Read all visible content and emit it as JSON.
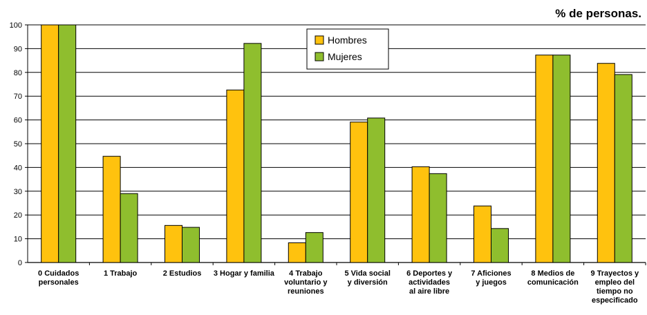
{
  "chart_data": {
    "type": "bar",
    "title": "% de personas.",
    "ylim": [
      0,
      100
    ],
    "yticks": [
      0,
      10,
      20,
      30,
      40,
      50,
      60,
      70,
      80,
      90,
      100
    ],
    "grid": true,
    "legend_position": "top-center",
    "categories": [
      [
        "0 Cuidados",
        "personales"
      ],
      [
        "1 Trabajo"
      ],
      [
        "2 Estudios"
      ],
      [
        "3 Hogar y familia"
      ],
      [
        "4 Trabajo",
        "voluntario y",
        "reuniones"
      ],
      [
        "5 Vida social",
        "y diversión"
      ],
      [
        "6 Deportes y",
        "actividades",
        "al aire libre"
      ],
      [
        "7 Aficiones",
        "y juegos"
      ],
      [
        "8 Medios de",
        "comunicación"
      ],
      [
        "9 Trayectos y",
        "empleo del",
        "tiempo no",
        "especificado"
      ]
    ],
    "series": [
      {
        "name": "Hombres",
        "color": "#ffc20e",
        "values": [
          100,
          44.7,
          15.6,
          72.6,
          8.3,
          59.1,
          40.3,
          23.8,
          87.3,
          83.8
        ]
      },
      {
        "name": "Mujeres",
        "color": "#8fbe2e",
        "values": [
          100,
          29.0,
          14.8,
          92.2,
          12.6,
          60.8,
          37.4,
          14.3,
          87.3,
          79.1
        ]
      }
    ]
  }
}
